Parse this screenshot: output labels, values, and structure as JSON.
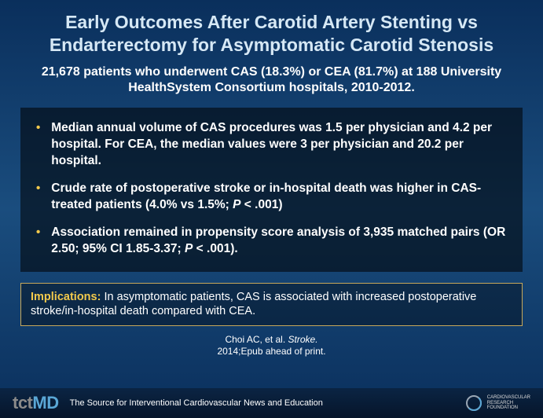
{
  "title": "Early Outcomes After Carotid Artery Stenting vs Endarterectomy for Asymptomatic Carotid Stenosis",
  "subtitle": "21,678 patients who underwent CAS (18.3%) or CEA (81.7%) at 188 University HealthSystem Consortium hospitals, 2010-2012.",
  "bullets": [
    "Median annual volume of CAS procedures was 1.5 per physician and 4.2 per hospital. For CEA, the median values were 3 per physician and 20.2 per hospital.",
    "Crude rate of postoperative stroke or in-hospital death was higher in CAS-treated patients (4.0% vs 1.5%; <i>P</i> < .001)",
    "Association remained in propensity score analysis of 3,935 matched pairs (OR 2.50; 95% CI 1.85-3.37; <i>P</i> < .001)."
  ],
  "implications_label": "Implications:",
  "implications_text": " In asymptomatic patients, CAS is associated with increased postoperative stroke/in-hospital death compared with CEA.",
  "citation_line1": "Choi AC, et al. <i>Stroke.</i>",
  "citation_line2": "2014;Epub ahead of print.",
  "footer": {
    "logo_grey": "tct",
    "logo_blue": "MD",
    "tagline": "The Source for Interventional Cardiovascular News and Education",
    "crf_line1": "Cardiovascular",
    "crf_line2": "Research",
    "crf_line3": "Foundation"
  },
  "colors": {
    "title_color": "#d6e8f5",
    "accent_yellow": "#f2c94c",
    "logo_blue": "#5aa7d6",
    "logo_grey": "#8a8a8a",
    "bg_top": "#0a2f5c",
    "bg_mid": "#1a4d7e"
  },
  "typography": {
    "title_fontsize": 23,
    "subtitle_fontsize": 16,
    "bullet_fontsize": 15.5,
    "implications_fontsize": 14.5,
    "citation_fontsize": 12,
    "tagline_fontsize": 11
  }
}
